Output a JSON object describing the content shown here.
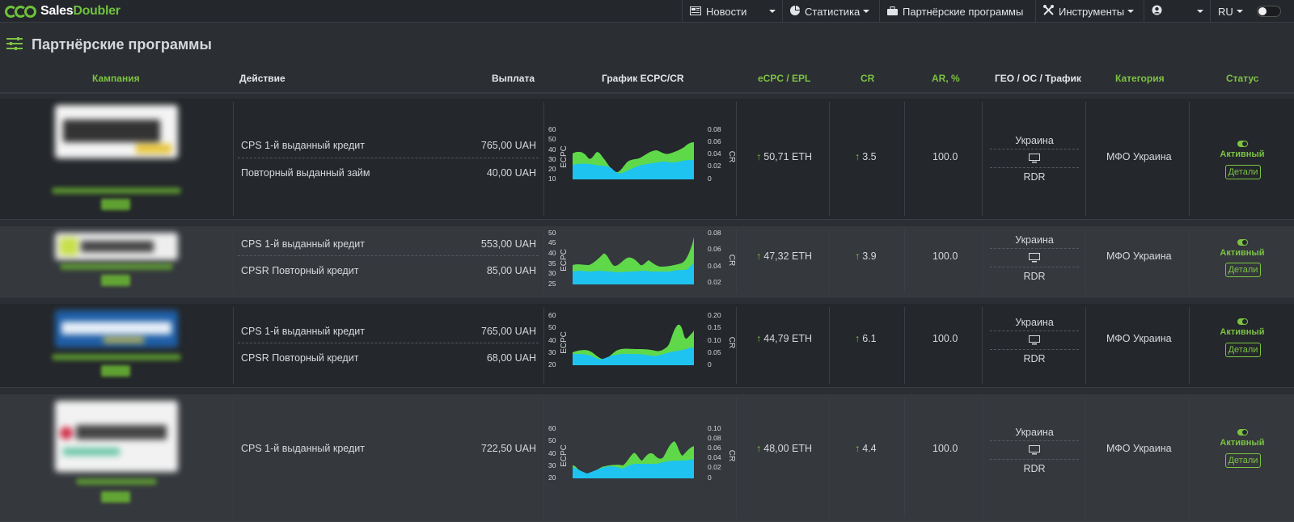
{
  "brand": {
    "part1": "Sales",
    "part2": "Doubler"
  },
  "nav": {
    "news": "Новости",
    "stats": "Статистика",
    "programs": "Партнёрские программы",
    "tools": "Инструменты",
    "lang": "RU"
  },
  "page_title": "Партнёрские программы",
  "columns": {
    "campaign": "Кампания",
    "action": "Действие",
    "payout": "Выплата",
    "chart": "График ECPC/CR",
    "ecpc": "eCPC / EPL",
    "cr": "CR",
    "ar": "AR, %",
    "geo": "ГЕО / ОС / Трафик",
    "category": "Категория",
    "status": "Статус"
  },
  "colors": {
    "accent": "#7cc342",
    "ecpc_area": "#1ec3f0",
    "cr_area": "#5fd94a"
  },
  "chart_labels": {
    "left": "ECPC",
    "right": "CR"
  },
  "rows": [
    {
      "actions": [
        {
          "name": "CPS 1-й выданный кредит",
          "payout": "765,00 UAH"
        },
        {
          "name": "Повторный выданный займ",
          "payout": "40,00 UAH"
        }
      ],
      "chart": {
        "y_left": [
          "60",
          "50",
          "40",
          "30",
          "20",
          "10"
        ],
        "y_right": [
          "0.08",
          "0.06",
          "0.04",
          "0.02",
          "0"
        ]
      },
      "ecpc": "50,71 ETH",
      "cr": "3.5",
      "ar": "100.0",
      "geo": "Украина",
      "traffic": "RDR",
      "category": "МФО Украина",
      "status": "Активный",
      "details": "Детали"
    },
    {
      "actions": [
        {
          "name": "CPS 1-й выданный кредит",
          "payout": "553,00 UAH"
        },
        {
          "name": "CPSR Повторный кредит",
          "payout": "85,00 UAH"
        }
      ],
      "chart": {
        "y_left": [
          "50",
          "45",
          "40",
          "35",
          "30",
          "25"
        ],
        "y_right": [
          "0.08",
          "0.06",
          "0.04",
          "0.02"
        ]
      },
      "ecpc": "47,32 ETH",
      "cr": "3.9",
      "ar": "100.0",
      "geo": "Украина",
      "traffic": "RDR",
      "category": "МФО Украина",
      "status": "Активный",
      "details": "Детали"
    },
    {
      "actions": [
        {
          "name": "CPS 1-й выданный кредит",
          "payout": "765,00 UAH"
        },
        {
          "name": "CPSR Повторный кредит",
          "payout": "68,00 UAH"
        }
      ],
      "chart": {
        "y_left": [
          "60",
          "50",
          "40",
          "30",
          "20"
        ],
        "y_right": [
          "0.20",
          "0.15",
          "0.10",
          "0.05",
          "0"
        ]
      },
      "ecpc": "44,79 ETH",
      "cr": "6.1",
      "ar": "100.0",
      "geo": "Украина",
      "traffic": "RDR",
      "category": "МФО Украина",
      "status": "Активный",
      "details": "Детали"
    },
    {
      "actions": [
        {
          "name": "CPS 1-й выданный кредит",
          "payout": "722,50 UAH"
        }
      ],
      "chart": {
        "y_left": [
          "60",
          "50",
          "40",
          "30",
          "20"
        ],
        "y_right": [
          "0.10",
          "0.08",
          "0.06",
          "0.04",
          "0.02",
          "0"
        ]
      },
      "ecpc": "48,00 ETH",
      "cr": "4.4",
      "ar": "100.0",
      "geo": "Украина",
      "traffic": "RDR",
      "category": "МФО Украина",
      "status": "Активный",
      "details": "Детали"
    }
  ]
}
